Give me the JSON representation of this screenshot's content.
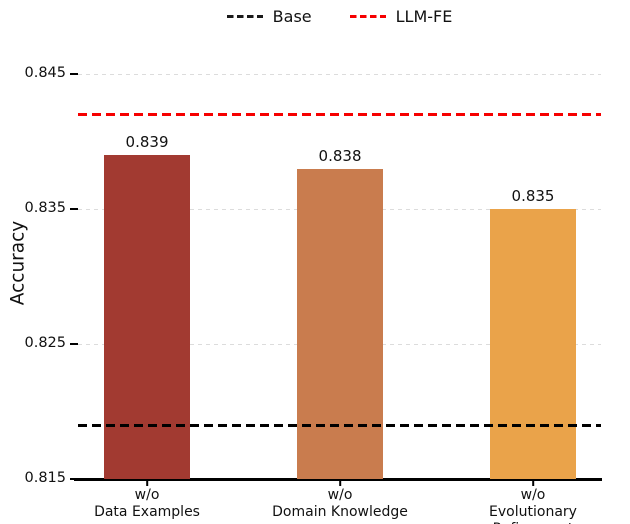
{
  "chart_data": {
    "type": "bar",
    "title": "",
    "ylabel": "Accuracy",
    "xlabel": "",
    "categories": [
      "w/o\nData Examples",
      "w/o\nDomain Knowledge",
      "w/o\nEvolutionary Refinement"
    ],
    "values": [
      0.839,
      0.838,
      0.835
    ],
    "value_labels": [
      "0.839",
      "0.838",
      "0.835"
    ],
    "bar_colors": [
      "#A23A31",
      "#C97C4E",
      "#EAA34A"
    ],
    "ylim": [
      0.815,
      0.847
    ],
    "yticks": [
      0.815,
      0.825,
      0.835,
      0.845
    ],
    "ytick_labels": [
      "0.815",
      "0.825",
      "0.835",
      "0.845"
    ],
    "grid": {
      "axis": "y",
      "style": "dashed",
      "color": "#dcdcdc"
    },
    "reference_lines": [
      {
        "label": "Base",
        "value": 0.819,
        "color": "#000000",
        "style": "dashed"
      },
      {
        "label": "LLM-FE",
        "value": 0.842,
        "color": "#F60000",
        "style": "dashed"
      }
    ],
    "legend": {
      "position": "top-center",
      "entries": [
        {
          "label": "Base",
          "color": "#1a1a1a"
        },
        {
          "label": "LLM-FE",
          "color": "#F60000"
        }
      ]
    }
  }
}
